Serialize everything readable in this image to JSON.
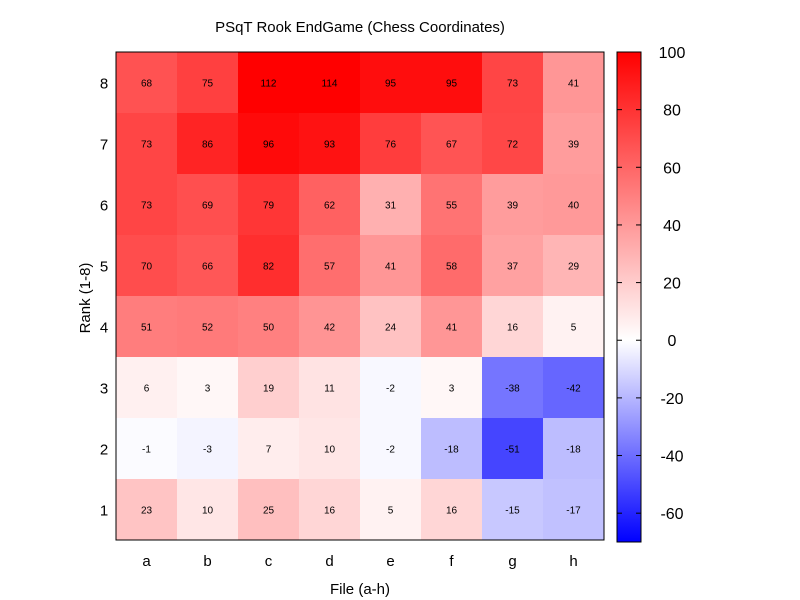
{
  "chart_data": {
    "type": "heatmap",
    "title": "PSqT Rook EndGame (Chess Coordinates)",
    "xlabel": "File (a-h)",
    "ylabel": "Rank (1-8)",
    "x_categories": [
      "a",
      "b",
      "c",
      "d",
      "e",
      "f",
      "g",
      "h"
    ],
    "y_categories": [
      "8",
      "7",
      "6",
      "5",
      "4",
      "3",
      "2",
      "1"
    ],
    "values": [
      [
        68,
        75,
        112,
        114,
        95,
        95,
        73,
        41
      ],
      [
        73,
        86,
        96,
        93,
        76,
        67,
        72,
        39
      ],
      [
        73,
        69,
        79,
        62,
        31,
        55,
        39,
        40
      ],
      [
        70,
        66,
        82,
        57,
        41,
        58,
        37,
        29
      ],
      [
        51,
        52,
        50,
        42,
        24,
        41,
        16,
        5
      ],
      [
        6,
        3,
        19,
        11,
        -2,
        3,
        -38,
        -42
      ],
      [
        -1,
        -3,
        7,
        10,
        -2,
        -18,
        -51,
        -18
      ],
      [
        23,
        10,
        25,
        16,
        5,
        16,
        -15,
        -17
      ]
    ],
    "colorbar": {
      "range": [
        -70,
        100
      ],
      "ticks": [
        100,
        80,
        60,
        40,
        20,
        0,
        -20,
        -40,
        -60
      ],
      "colors": {
        "negative": "#0000ff",
        "zero": "#ffffff",
        "positive": "#ff0000"
      }
    }
  }
}
